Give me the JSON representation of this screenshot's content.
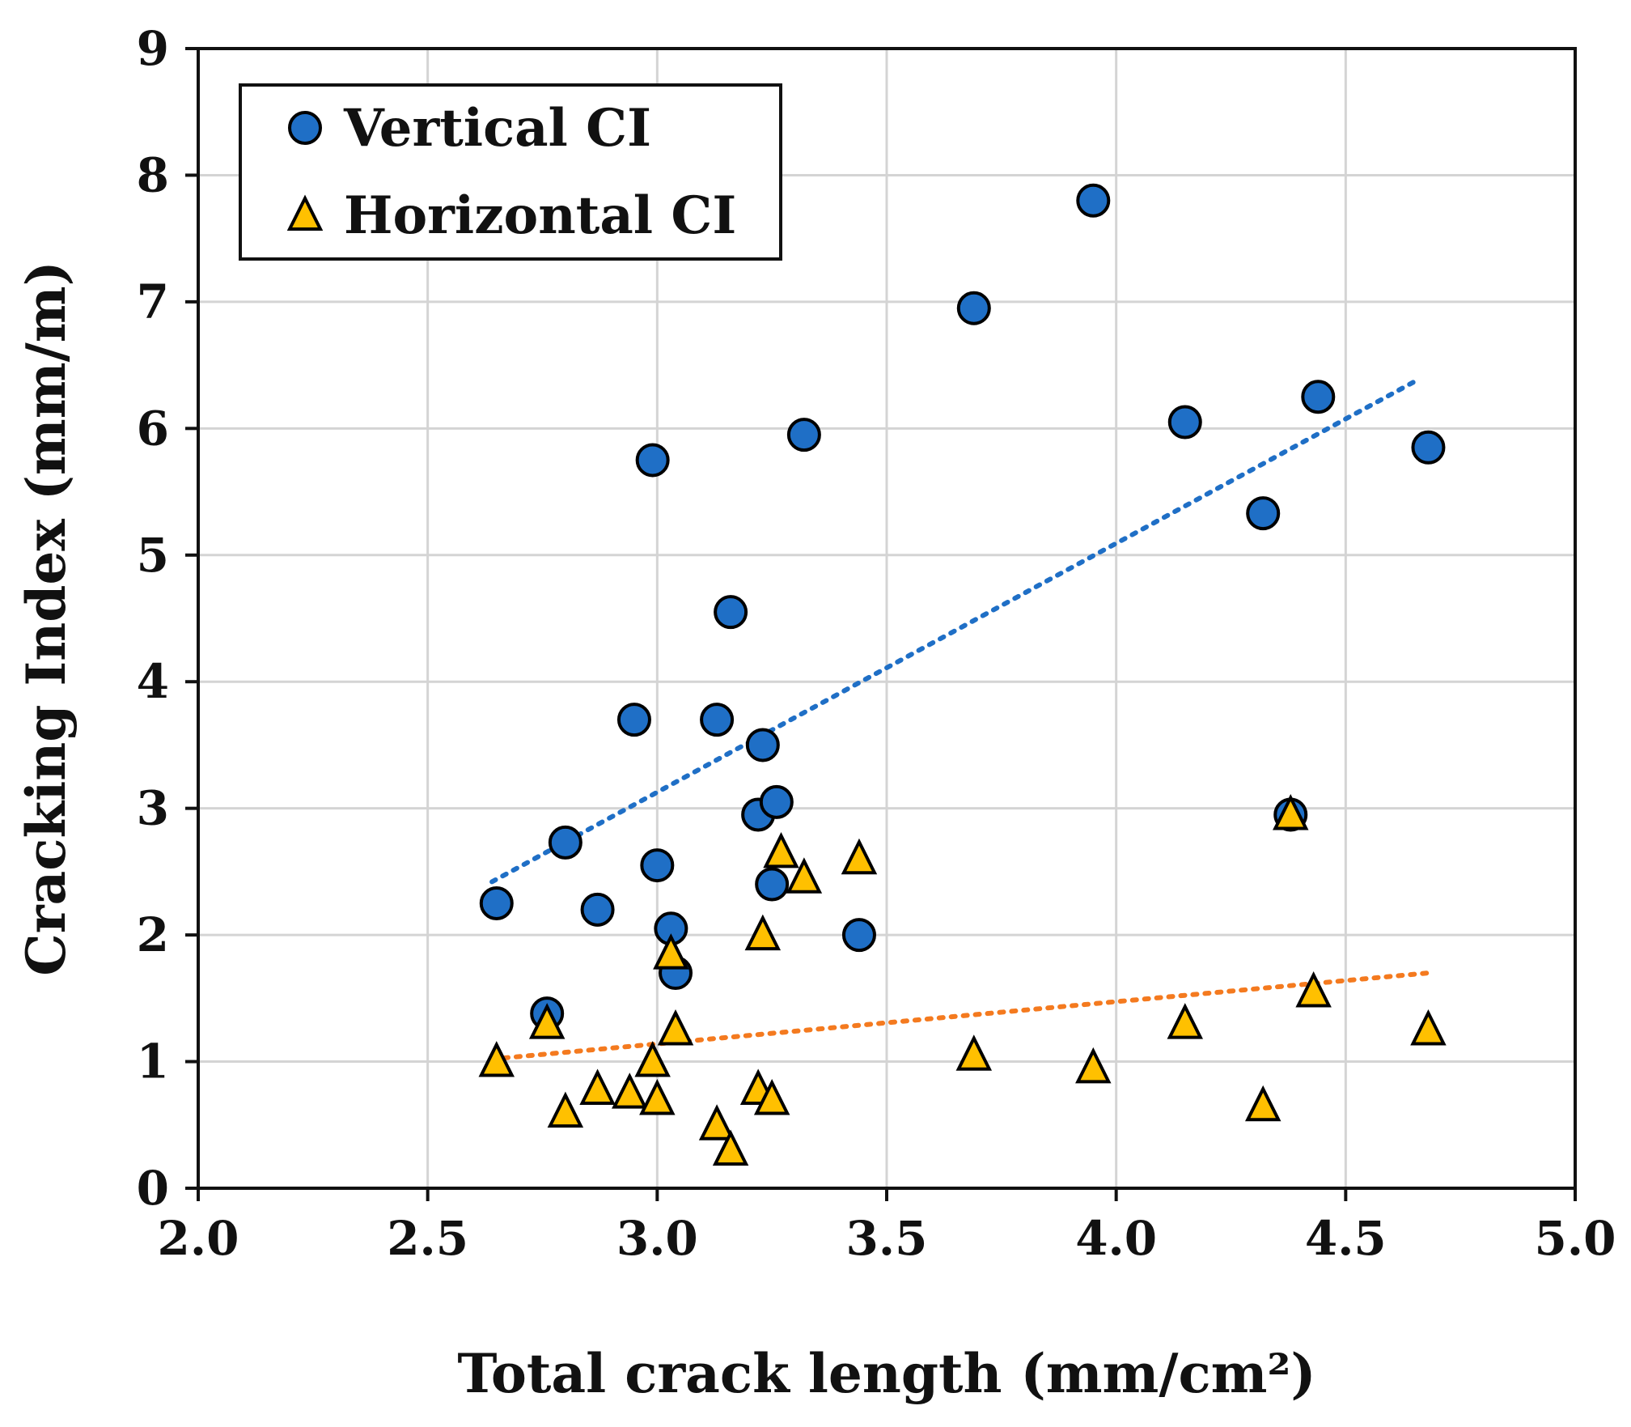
{
  "chart_data": {
    "type": "scatter",
    "xlabel": "Total crack length (mm/cm²)",
    "ylabel": "Cracking Index (mm/m)",
    "xlim": [
      2.0,
      5.0
    ],
    "ylim": [
      0,
      9
    ],
    "x_ticks": [
      "2.0",
      "2.5",
      "3.0",
      "3.5",
      "4.0",
      "4.5",
      "5.0"
    ],
    "y_ticks": [
      "0",
      "1",
      "2",
      "3",
      "4",
      "5",
      "6",
      "7",
      "8",
      "9"
    ],
    "grid": true,
    "legend_position": "top-left",
    "series": [
      {
        "name": "Vertical CI",
        "marker": "circle",
        "color": "#1F6FC6",
        "points": [
          {
            "x": 2.65,
            "y": 2.25
          },
          {
            "x": 2.76,
            "y": 1.38
          },
          {
            "x": 2.8,
            "y": 2.73
          },
          {
            "x": 2.87,
            "y": 2.2
          },
          {
            "x": 2.95,
            "y": 3.7
          },
          {
            "x": 2.99,
            "y": 5.75
          },
          {
            "x": 3.0,
            "y": 2.55
          },
          {
            "x": 3.03,
            "y": 2.05
          },
          {
            "x": 3.04,
            "y": 1.7
          },
          {
            "x": 3.13,
            "y": 3.7
          },
          {
            "x": 3.16,
            "y": 4.55
          },
          {
            "x": 3.22,
            "y": 2.95
          },
          {
            "x": 3.23,
            "y": 3.5
          },
          {
            "x": 3.25,
            "y": 2.4
          },
          {
            "x": 3.26,
            "y": 3.05
          },
          {
            "x": 3.32,
            "y": 5.95
          },
          {
            "x": 3.44,
            "y": 2.0
          },
          {
            "x": 3.69,
            "y": 6.95
          },
          {
            "x": 3.95,
            "y": 7.8
          },
          {
            "x": 4.15,
            "y": 6.05
          },
          {
            "x": 4.32,
            "y": 5.33
          },
          {
            "x": 4.38,
            "y": 2.95
          },
          {
            "x": 4.44,
            "y": 6.25
          },
          {
            "x": 4.68,
            "y": 5.85
          }
        ],
        "trendline": {
          "x": [
            2.64,
            4.65
          ],
          "y": [
            2.42,
            6.37
          ],
          "color": "#1F6FC6",
          "style": "dotted"
        }
      },
      {
        "name": "Horizontal CI",
        "marker": "triangle",
        "color": "#FFC000",
        "points": [
          {
            "x": 2.65,
            "y": 1.0
          },
          {
            "x": 2.76,
            "y": 1.3
          },
          {
            "x": 2.8,
            "y": 0.6
          },
          {
            "x": 2.87,
            "y": 0.78
          },
          {
            "x": 2.94,
            "y": 0.75
          },
          {
            "x": 2.99,
            "y": 1.0
          },
          {
            "x": 3.0,
            "y": 0.7
          },
          {
            "x": 3.03,
            "y": 1.85
          },
          {
            "x": 3.04,
            "y": 1.25
          },
          {
            "x": 3.13,
            "y": 0.5
          },
          {
            "x": 3.16,
            "y": 0.3
          },
          {
            "x": 3.22,
            "y": 0.78
          },
          {
            "x": 3.23,
            "y": 2.0
          },
          {
            "x": 3.25,
            "y": 0.7
          },
          {
            "x": 3.27,
            "y": 2.65
          },
          {
            "x": 3.32,
            "y": 2.45
          },
          {
            "x": 3.44,
            "y": 2.6
          },
          {
            "x": 3.69,
            "y": 1.05
          },
          {
            "x": 3.95,
            "y": 0.95
          },
          {
            "x": 4.15,
            "y": 1.3
          },
          {
            "x": 4.32,
            "y": 0.65
          },
          {
            "x": 4.38,
            "y": 2.95
          },
          {
            "x": 4.43,
            "y": 1.55
          },
          {
            "x": 4.68,
            "y": 1.25
          }
        ],
        "trendline": {
          "x": [
            2.64,
            4.68
          ],
          "y": [
            1.02,
            1.7
          ],
          "color": "#F47A1F",
          "style": "dotted"
        }
      }
    ]
  }
}
